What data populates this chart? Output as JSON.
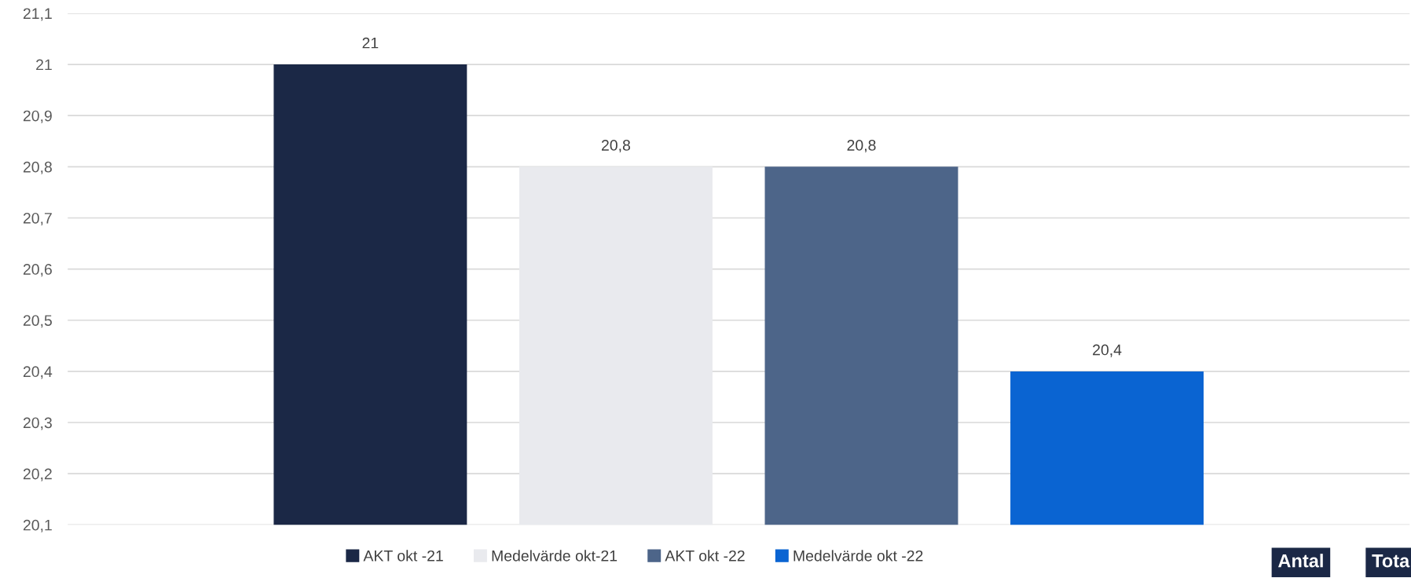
{
  "chart_data": {
    "type": "bar",
    "categories": [
      null
    ],
    "series": [
      {
        "name": "AKT okt -21",
        "color": "#1b2846",
        "values": [
          21
        ],
        "value_labels": [
          "21"
        ]
      },
      {
        "name": "Medelvärde okt-21",
        "color": "#e9eaee",
        "values": [
          20.8
        ],
        "value_labels": [
          "20,8"
        ]
      },
      {
        "name": "AKT okt -22",
        "color": "#4d6589",
        "values": [
          20.8
        ],
        "value_labels": [
          "20,8"
        ]
      },
      {
        "name": "Medelvärde okt -22",
        "color": "#0a64d2",
        "values": [
          20.4
        ],
        "value_labels": [
          "20,4"
        ]
      }
    ],
    "ylim": [
      20.1,
      21.1
    ],
    "yticks": [
      {
        "value": 20.1,
        "label": "20,1"
      },
      {
        "value": 20.2,
        "label": "20,2"
      },
      {
        "value": 20.3,
        "label": "20,3"
      },
      {
        "value": 20.4,
        "label": "20,4"
      },
      {
        "value": 20.5,
        "label": "20,5"
      },
      {
        "value": 20.6,
        "label": "20,6"
      },
      {
        "value": 20.7,
        "label": "20,7"
      },
      {
        "value": 20.8,
        "label": "20,8"
      },
      {
        "value": 20.9,
        "label": "20,9"
      },
      {
        "value": 21,
        "label": "21"
      },
      {
        "value": 21.1,
        "label": "21,1"
      }
    ],
    "grid": "y",
    "legend": "bottom",
    "tick_labels": "y",
    "annotations": [
      "Antal",
      "Tota"
    ]
  }
}
